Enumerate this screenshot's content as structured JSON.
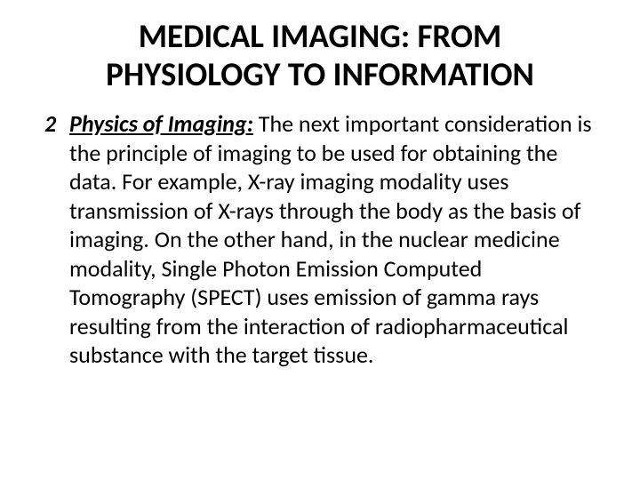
{
  "title": "MEDICAL IMAGING: FROM PHYSIOLOGY TO INFORMATION",
  "item": {
    "number": "2",
    "heading": "Physics of Imaging:",
    "text": " The next important consideration is the principle of imaging to be used for obtaining the data. For example, X-ray imaging modality uses transmission of X-rays through the body as the basis of imaging. On the other hand, in the nuclear medicine modality, Single Photon Emission Computed Tomography (SPECT) uses emission of gamma rays resulting from the interaction of radiopharmaceutical substance with the target tissue."
  },
  "colors": {
    "background": "#ffffff",
    "text": "#000000"
  },
  "typography": {
    "title_fontsize": 37,
    "body_fontsize": 26,
    "title_weight": "bold",
    "heading_style": "italic bold underline",
    "number_style": "italic bold"
  }
}
